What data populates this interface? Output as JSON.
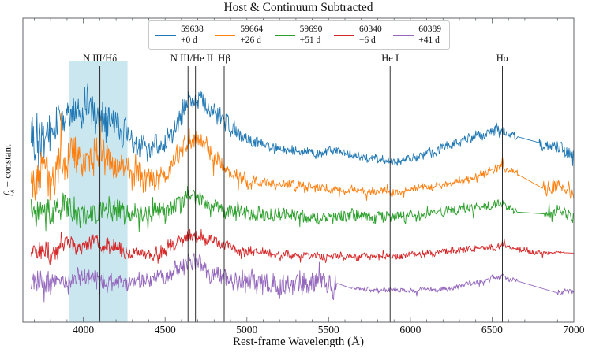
{
  "chart_data": {
    "type": "line",
    "title": "Host & Continuum Subtracted",
    "xlabel": "Rest-frame Wavelength (Å)",
    "ylabel": "fλ + constant",
    "xlim": [
      3630,
      7000
    ],
    "ylim": [
      0,
      10
    ],
    "x_ticks": [
      4000,
      4500,
      5000,
      5500,
      6000,
      6500,
      7000
    ],
    "x_minor_tick_step": 100,
    "grid": false,
    "legend_position": "upper center inside axes",
    "series_x_start": 3680,
    "shaded_band": {
      "x_start": 3910,
      "x_end": 4270,
      "color": "#add8e6",
      "opacity": 0.65
    },
    "features": [
      {
        "label": "N III/Hδ",
        "wavelengths": [
          4101
        ]
      },
      {
        "label": "N III/He II",
        "wavelengths": [
          4640,
          4686
        ]
      },
      {
        "label": "Hβ",
        "wavelengths": [
          4861
        ]
      },
      {
        "label": "He I",
        "wavelengths": [
          5876
        ]
      },
      {
        "label": "Hα",
        "wavelengths": [
          6563
        ]
      }
    ],
    "series": [
      {
        "name": "59638",
        "phase": "+0 d",
        "color": "#1f77b4",
        "seed": 101,
        "anchors": [
          [
            3680,
            6.3
          ],
          [
            3760,
            6.15
          ],
          [
            3860,
            6.55
          ],
          [
            3950,
            6.95
          ],
          [
            4060,
            7.05
          ],
          [
            4160,
            6.75
          ],
          [
            4260,
            6.3
          ],
          [
            4360,
            5.85
          ],
          [
            4460,
            5.7
          ],
          [
            4560,
            6.3
          ],
          [
            4640,
            7.3
          ],
          [
            4700,
            7.35
          ],
          [
            4790,
            6.95
          ],
          [
            4861,
            6.6
          ],
          [
            4960,
            6.15
          ],
          [
            5150,
            5.7
          ],
          [
            5350,
            5.6
          ],
          [
            5550,
            5.6
          ],
          [
            5750,
            5.35
          ],
          [
            5950,
            5.3
          ],
          [
            6150,
            5.6
          ],
          [
            6350,
            6.0
          ],
          [
            6500,
            6.25
          ],
          [
            6563,
            6.35
          ],
          [
            6655,
            6.1
          ],
          [
            6790,
            5.9
          ],
          [
            6900,
            5.8
          ],
          [
            7000,
            5.45
          ]
        ],
        "noise_envelope": [
          [
            3680,
            1.0
          ],
          [
            3800,
            0.8
          ],
          [
            3950,
            0.7
          ],
          [
            4150,
            0.6
          ],
          [
            4350,
            0.5
          ],
          [
            4600,
            0.4
          ],
          [
            4861,
            0.35
          ],
          [
            5100,
            0.2
          ],
          [
            5500,
            0.15
          ],
          [
            6000,
            0.15
          ],
          [
            6400,
            0.17
          ],
          [
            6563,
            0.18
          ],
          [
            6655,
            0.15
          ],
          [
            6790,
            0.2
          ],
          [
            7000,
            0.22
          ]
        ],
        "gaps": [
          [
            6655,
            6790
          ]
        ]
      },
      {
        "name": "59664",
        "phase": "+26 d",
        "color": "#ff7f0e",
        "seed": 202,
        "anchors": [
          [
            3680,
            4.85
          ],
          [
            3780,
            4.7
          ],
          [
            3900,
            5.2
          ],
          [
            4000,
            5.5
          ],
          [
            4100,
            5.55
          ],
          [
            4200,
            5.25
          ],
          [
            4330,
            4.75
          ],
          [
            4480,
            4.8
          ],
          [
            4600,
            5.6
          ],
          [
            4650,
            6.05
          ],
          [
            4690,
            6.1
          ],
          [
            4800,
            5.4
          ],
          [
            4900,
            4.85
          ],
          [
            5050,
            4.6
          ],
          [
            5300,
            4.5
          ],
          [
            5600,
            4.35
          ],
          [
            5900,
            4.3
          ],
          [
            6150,
            4.5
          ],
          [
            6350,
            4.7
          ],
          [
            6500,
            4.95
          ],
          [
            6556,
            5.05
          ],
          [
            6563,
            5.4
          ],
          [
            6572,
            5.05
          ],
          [
            6660,
            4.85
          ],
          [
            6810,
            4.4
          ],
          [
            6900,
            4.55
          ],
          [
            7000,
            4.2
          ]
        ],
        "noise_envelope": [
          [
            3680,
            0.9
          ],
          [
            3850,
            0.7
          ],
          [
            4050,
            0.6
          ],
          [
            4300,
            0.5
          ],
          [
            4600,
            0.4
          ],
          [
            4861,
            0.3
          ],
          [
            5100,
            0.18
          ],
          [
            5600,
            0.14
          ],
          [
            6100,
            0.14
          ],
          [
            6500,
            0.16
          ],
          [
            6660,
            0.15
          ],
          [
            6810,
            0.22
          ],
          [
            7000,
            0.25
          ]
        ],
        "gaps": [
          [
            6660,
            6810
          ]
        ]
      },
      {
        "name": "59690",
        "phase": "+51 d",
        "color": "#2ca02c",
        "seed": 303,
        "anchors": [
          [
            3680,
            3.6
          ],
          [
            3850,
            3.65
          ],
          [
            4000,
            3.6
          ],
          [
            4150,
            3.62
          ],
          [
            4300,
            3.5
          ],
          [
            4470,
            3.6
          ],
          [
            4600,
            3.95
          ],
          [
            4650,
            4.12
          ],
          [
            4690,
            4.08
          ],
          [
            4800,
            3.75
          ],
          [
            4950,
            3.58
          ],
          [
            5200,
            3.52
          ],
          [
            5500,
            3.5
          ],
          [
            5800,
            3.48
          ],
          [
            6100,
            3.55
          ],
          [
            6350,
            3.75
          ],
          [
            6500,
            3.85
          ],
          [
            6563,
            3.92
          ],
          [
            6650,
            3.62
          ],
          [
            6820,
            3.56
          ],
          [
            6900,
            3.68
          ],
          [
            7000,
            3.45
          ]
        ],
        "noise_envelope": [
          [
            3680,
            0.5
          ],
          [
            3900,
            0.45
          ],
          [
            4200,
            0.4
          ],
          [
            4500,
            0.35
          ],
          [
            4800,
            0.28
          ],
          [
            5100,
            0.24
          ],
          [
            5500,
            0.24
          ],
          [
            6000,
            0.2
          ],
          [
            6400,
            0.17
          ],
          [
            6650,
            0.12
          ],
          [
            6820,
            0.18
          ],
          [
            7000,
            0.2
          ]
        ],
        "gaps": [
          [
            6650,
            6820
          ]
        ]
      },
      {
        "name": "60340",
        "phase": "−6 d",
        "color": "#d62728",
        "seed": 404,
        "anchors": [
          [
            3680,
            2.3
          ],
          [
            3800,
            2.28
          ],
          [
            3950,
            2.55
          ],
          [
            4080,
            2.6
          ],
          [
            4220,
            2.4
          ],
          [
            4380,
            2.22
          ],
          [
            4520,
            2.4
          ],
          [
            4620,
            2.75
          ],
          [
            4660,
            2.85
          ],
          [
            4750,
            2.7
          ],
          [
            4861,
            2.5
          ],
          [
            5000,
            2.32
          ],
          [
            5250,
            2.22
          ],
          [
            5550,
            2.16
          ],
          [
            5850,
            2.15
          ],
          [
            6150,
            2.25
          ],
          [
            6400,
            2.4
          ],
          [
            6540,
            2.48
          ],
          [
            6563,
            2.55
          ],
          [
            6600,
            2.45
          ],
          [
            6750,
            2.3
          ],
          [
            6940,
            2.28
          ],
          [
            7000,
            2.27
          ]
        ],
        "noise_envelope": [
          [
            3680,
            0.35
          ],
          [
            3900,
            0.3
          ],
          [
            4200,
            0.25
          ],
          [
            4600,
            0.22
          ],
          [
            4900,
            0.18
          ],
          [
            5300,
            0.13
          ],
          [
            5800,
            0.12
          ],
          [
            6300,
            0.12
          ],
          [
            6700,
            0.12
          ],
          [
            6940,
            0.04
          ],
          [
            7000,
            0.04
          ]
        ],
        "gaps": [
          [
            6940,
            7000
          ]
        ]
      },
      {
        "name": "60389",
        "phase": "+41 d",
        "color": "#9467bd",
        "seed": 505,
        "anchors": [
          [
            3680,
            1.3
          ],
          [
            3800,
            1.2
          ],
          [
            3950,
            1.45
          ],
          [
            4080,
            1.4
          ],
          [
            4220,
            1.25
          ],
          [
            4400,
            1.35
          ],
          [
            4550,
            1.6
          ],
          [
            4640,
            1.95
          ],
          [
            4686,
            2.05
          ],
          [
            4780,
            1.65
          ],
          [
            4920,
            1.35
          ],
          [
            5150,
            1.2
          ],
          [
            5350,
            1.18
          ],
          [
            5550,
            1.28
          ],
          [
            5645,
            1.1
          ],
          [
            5800,
            1.06
          ],
          [
            6000,
            1.04
          ],
          [
            6250,
            1.12
          ],
          [
            6450,
            1.35
          ],
          [
            6563,
            1.52
          ],
          [
            6655,
            1.35
          ],
          [
            6900,
            0.96
          ],
          [
            7000,
            1.02
          ]
        ],
        "noise_envelope": [
          [
            3680,
            0.42
          ],
          [
            3900,
            0.36
          ],
          [
            4200,
            0.32
          ],
          [
            4500,
            0.3
          ],
          [
            4800,
            0.32
          ],
          [
            5100,
            0.36
          ],
          [
            5400,
            0.38
          ],
          [
            5548,
            0.4
          ],
          [
            5560,
            0.08
          ],
          [
            5800,
            0.08
          ],
          [
            6100,
            0.09
          ],
          [
            6400,
            0.1
          ],
          [
            6563,
            0.12
          ],
          [
            6655,
            0.08
          ],
          [
            6900,
            0.1
          ],
          [
            7000,
            0.1
          ]
        ],
        "gaps": [
          [
            5550,
            5645
          ],
          [
            6655,
            6900
          ]
        ]
      }
    ]
  },
  "ui": {
    "ylabel_parts": {
      "f": "f",
      "sub": "λ",
      "rest": " + constant"
    }
  }
}
